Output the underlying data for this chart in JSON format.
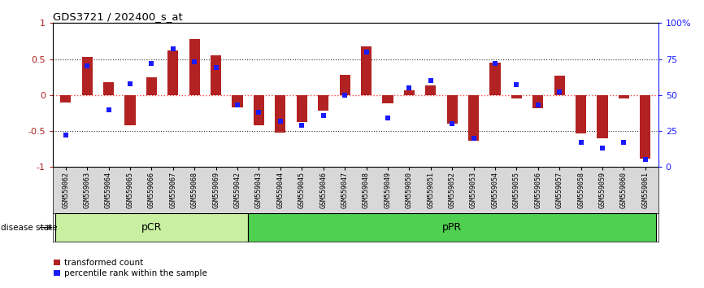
{
  "title": "GDS3721 / 202400_s_at",
  "samples": [
    "GSM559062",
    "GSM559063",
    "GSM559064",
    "GSM559065",
    "GSM559066",
    "GSM559067",
    "GSM559068",
    "GSM559069",
    "GSM559042",
    "GSM559043",
    "GSM559044",
    "GSM559045",
    "GSM559046",
    "GSM559047",
    "GSM559048",
    "GSM559049",
    "GSM559050",
    "GSM559051",
    "GSM559052",
    "GSM559053",
    "GSM559054",
    "GSM559055",
    "GSM559056",
    "GSM559057",
    "GSM559058",
    "GSM559059",
    "GSM559060",
    "GSM559061"
  ],
  "bar_values": [
    -0.1,
    0.53,
    0.18,
    -0.42,
    0.25,
    0.62,
    0.78,
    0.55,
    -0.17,
    -0.42,
    -0.52,
    -0.38,
    -0.22,
    0.28,
    0.68,
    -0.12,
    0.07,
    0.13,
    -0.4,
    -0.63,
    0.45,
    -0.05,
    -0.18,
    0.27,
    -0.53,
    -0.6,
    -0.05,
    -0.88
  ],
  "dot_values_pct": [
    22,
    70,
    40,
    58,
    72,
    82,
    73,
    69,
    43,
    38,
    32,
    29,
    36,
    50,
    80,
    34,
    55,
    60,
    30,
    20,
    72,
    57,
    43,
    52,
    17,
    13,
    17,
    5
  ],
  "pcr_count": 9,
  "ppr_count": 19,
  "bar_color": "#B22222",
  "dot_color": "#1a1aff",
  "pcr_color": "#c8f0a0",
  "ppr_color": "#50d050",
  "bg_color": "#FFFFFF",
  "plot_bg": "#FFFFFF",
  "xtick_bg": "#d8d8d8",
  "ylim": [
    -1.0,
    1.0
  ],
  "y2lim": [
    0,
    100
  ],
  "yticks_left": [
    -1.0,
    -0.5,
    0.0,
    0.5,
    1.0
  ],
  "ytick_labels_left": [
    "-1",
    "-0.5",
    "0",
    "0.5",
    "1"
  ],
  "y2ticks": [
    0,
    25,
    50,
    75,
    100
  ],
  "y2tick_labels": [
    "0",
    "25",
    "50",
    "75",
    "100%"
  ],
  "hlines": [
    -0.5,
    0.0,
    0.5
  ],
  "hline_zero_color": "#FF4444",
  "hline_other_color": "#333333",
  "legend_transformed": "transformed count",
  "legend_percentile": "percentile rank within the sample",
  "disease_state_label": "disease state",
  "pcr_label": "pCR",
  "ppr_label": "pPR",
  "bar_width": 0.5
}
